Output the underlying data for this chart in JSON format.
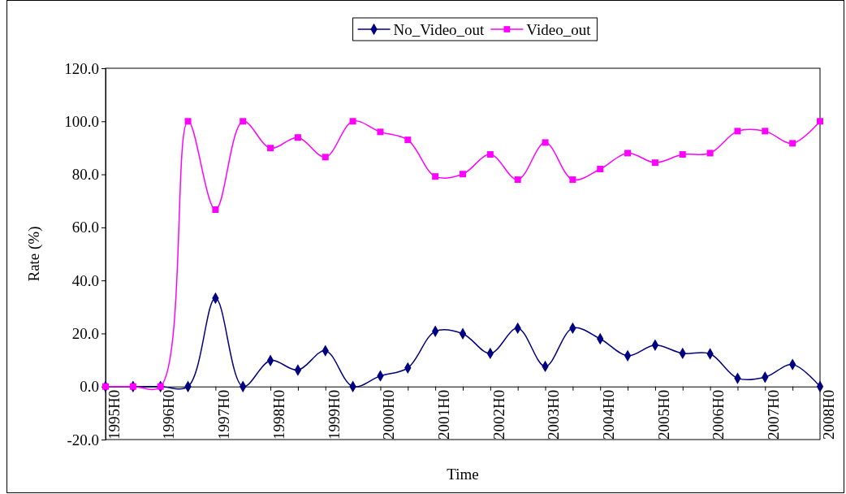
{
  "chart_data": {
    "type": "line",
    "xlabel": "Time",
    "ylabel": "Rate (%)",
    "legend": "top",
    "categories": [
      "1995H0",
      null,
      "1996H0",
      null,
      "1997H0",
      null,
      "1998H0",
      null,
      "1999H0",
      null,
      "2000H0",
      null,
      "2001H0",
      null,
      "2002H0",
      null,
      "2003H0",
      null,
      "2004H0",
      null,
      "2005H0",
      null,
      "2006H0",
      null,
      "2007H0",
      null,
      "2008H0"
    ],
    "ylim": [
      -20,
      120
    ],
    "yticks": [
      {
        "value": -20,
        "label": "-20.0"
      },
      {
        "value": 0,
        "label": "0.0"
      },
      {
        "value": 20,
        "label": "20.0"
      },
      {
        "value": 40,
        "label": "40.0"
      },
      {
        "value": 60,
        "label": "60.0"
      },
      {
        "value": 80,
        "label": "80.0"
      },
      {
        "value": 100,
        "label": "100.0"
      },
      {
        "value": 120,
        "label": "120.0"
      }
    ],
    "series": [
      {
        "name": "No_Video_out",
        "color": "#000080",
        "marker": "diamond",
        "values": [
          0,
          0,
          0,
          0,
          33.3,
          0,
          9.8,
          6.2,
          13.5,
          0,
          4,
          7,
          20.8,
          19.9,
          12.5,
          22,
          7.6,
          22,
          18,
          11.6,
          15.6,
          12.5,
          12.3,
          3.1,
          3.5,
          8.3,
          0
        ]
      },
      {
        "name": "Video_out",
        "color": "#ff00ff",
        "marker": "square",
        "values": [
          0,
          0,
          0,
          100,
          66.7,
          100,
          89.9,
          93.9,
          86.5,
          100,
          96,
          93,
          79.2,
          80.1,
          87.5,
          78,
          92,
          78,
          82,
          88,
          84.4,
          87.5,
          88,
          96.3,
          96.3,
          91.7,
          100
        ]
      }
    ]
  }
}
